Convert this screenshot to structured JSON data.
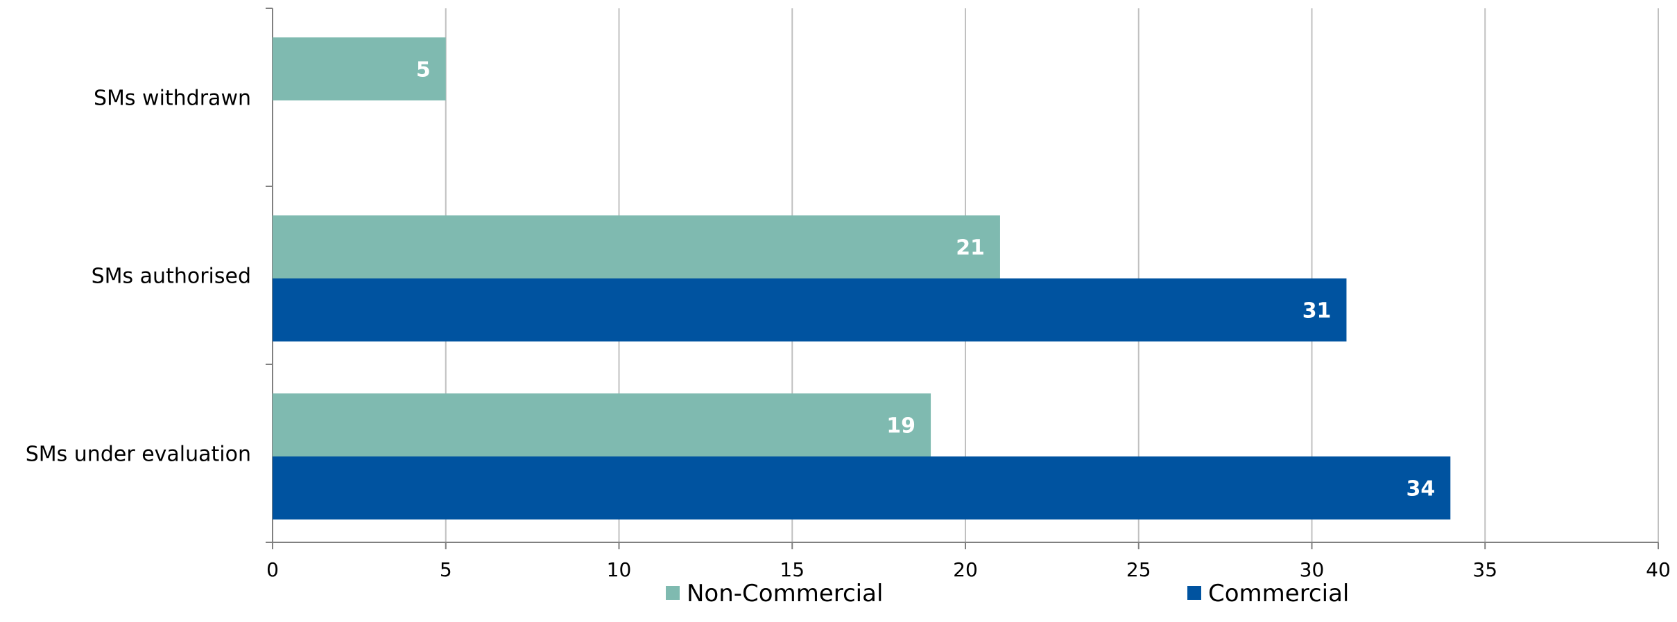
{
  "chart_data": {
    "type": "bar",
    "orientation": "horizontal",
    "categories": [
      "SMs withdrawn",
      "SMs authorised",
      "SMs under evaluation"
    ],
    "series": [
      {
        "name": "Non-Commercial",
        "values": [
          5,
          21,
          19
        ],
        "color": "#7fbab0"
      },
      {
        "name": "Commercial",
        "values": [
          null,
          31,
          34
        ],
        "color": "#0053a0"
      }
    ],
    "xticks": [
      "0",
      "5",
      "10",
      "15",
      "20",
      "25",
      "30",
      "35",
      "40"
    ],
    "xlim": [
      0,
      40
    ],
    "title": "",
    "xlabel": "",
    "ylabel": "",
    "grid": true,
    "legend_position": "bottom"
  },
  "colors": {
    "grid": "#c0c0c0",
    "axis": "#808080"
  }
}
